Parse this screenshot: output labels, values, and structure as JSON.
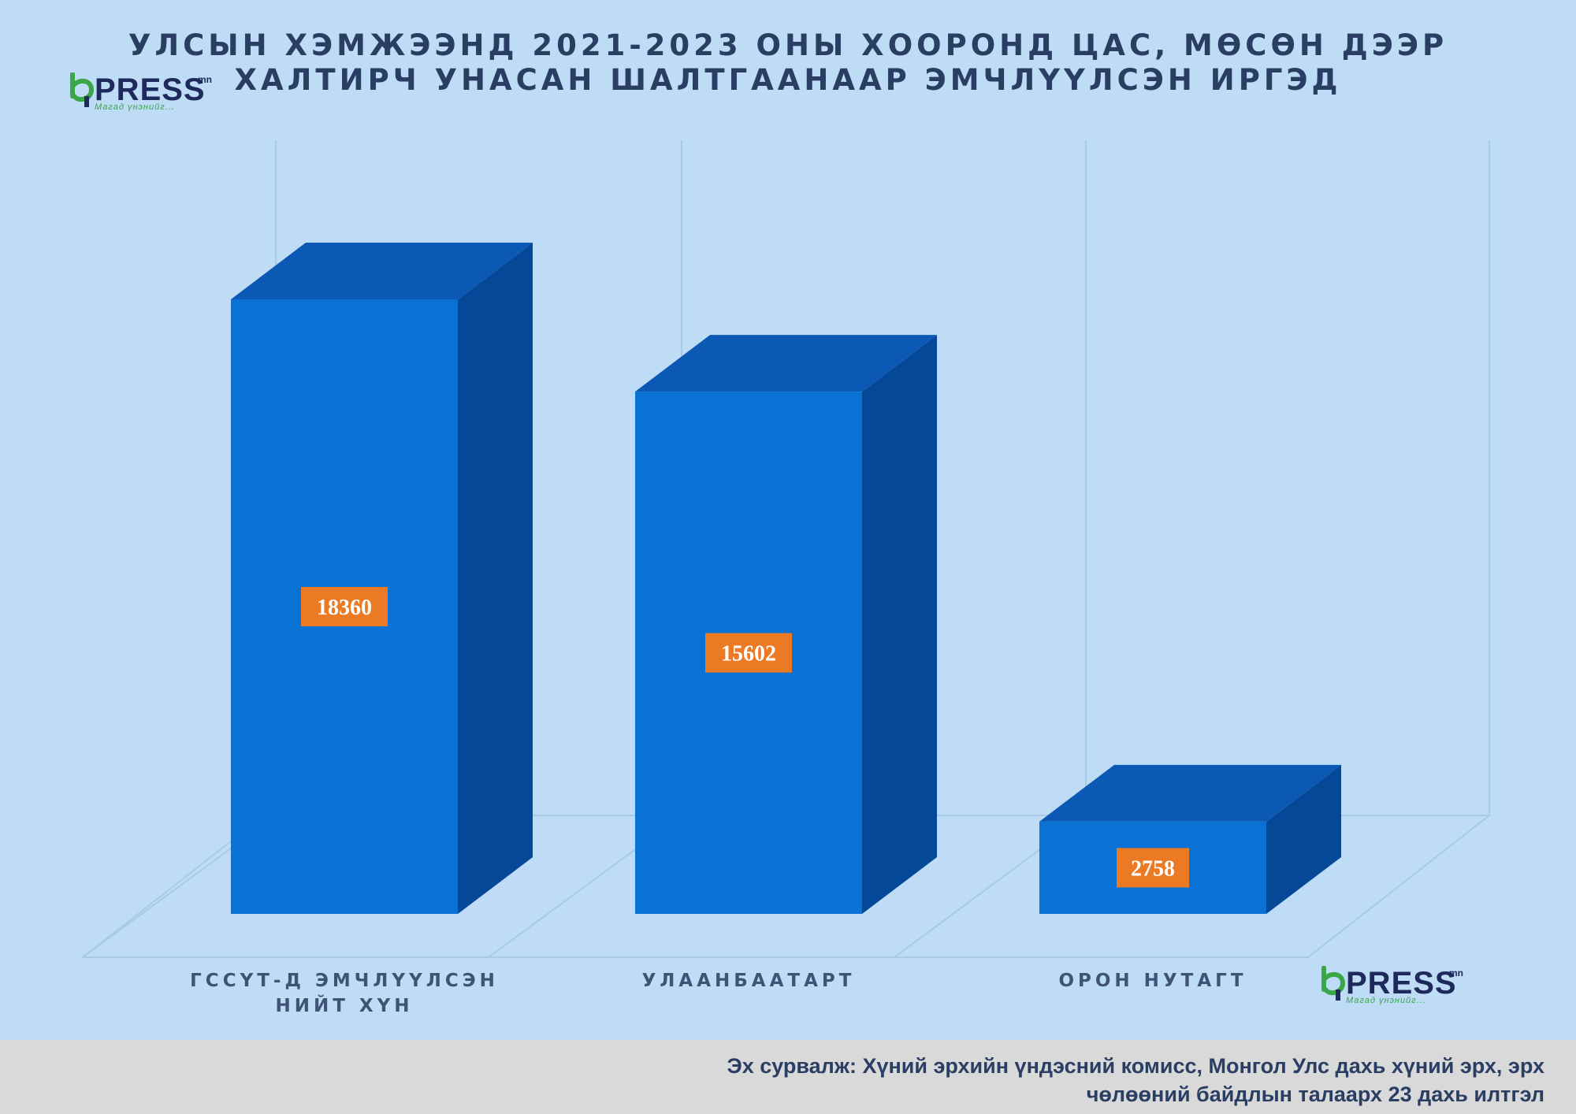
{
  "title_lines": [
    "УЛСЫН ХЭМЖЭЭНД 2021-2023 ОНЫ ХООРОНД ЦАС, МӨСӨН ДЭЭР",
    "ХАЛТИРЧ УНАСАН ШАЛТГААНААР ЭМЧЛҮҮЛСЭН ИРГЭД"
  ],
  "logo": {
    "word": "PRESS",
    "sup": "mn",
    "slogan": "Магад үнэнийг..."
  },
  "source_lines": [
    "Эх сурвалж: Хүний эрхийн үндэсний комисс,  Монгол Улс дахь хүний эрх, эрх",
    "чөлөөний байдлын талаарх 23 дахь илтгэл"
  ],
  "colors": {
    "background": "#bfdcf6",
    "bar_front": "#0a72d4",
    "bar_side": "#064898",
    "bar_top": "#0b59b4",
    "label_bg": "#ec7a25",
    "title_text": "#2a3e63",
    "logo_green": "#3aa648",
    "logo_navy": "#1f2a5c"
  },
  "chart_data": {
    "type": "bar",
    "style": "3d-column",
    "title": "УЛСЫН ХЭМЖЭЭНД 2021-2023 ОНЫ ХООРОНД ЦАС, МӨСӨН ДЭЭР ХАЛТИРЧ УНАСАН ШАЛТГААНААР ЭМЧЛҮҮЛСЭН ИРГЭД",
    "categories": [
      [
        "ГССҮТ-Д ЭМЧЛҮҮЛСЭН",
        "НИЙТ ХҮН"
      ],
      [
        "УЛААНБААТАРТ"
      ],
      [
        "ОРОН НУТАГТ"
      ]
    ],
    "values": [
      18360,
      15602,
      2758
    ],
    "value_labels": [
      "18360",
      "15602",
      "2758"
    ],
    "ylim": [
      0,
      20000
    ],
    "grid": false,
    "legend": "none"
  }
}
